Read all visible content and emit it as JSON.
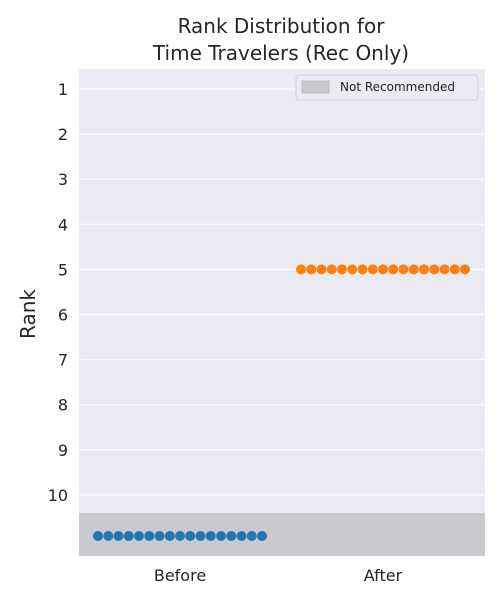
{
  "chart_data": {
    "type": "scatter",
    "title_lines": [
      "Rank Distribution for",
      "Time Travelers (Rec Only)"
    ],
    "ylabel": "Rank",
    "categories": [
      "Before",
      "After"
    ],
    "y_ticks": [
      "1",
      "2",
      "3",
      "4",
      "5",
      "6",
      "7",
      "8",
      "9",
      "10"
    ],
    "y_inverted": true,
    "grid": true,
    "legend": {
      "label": "Not Recommended",
      "placement": "top-right",
      "color": "#cbc9d0"
    },
    "series": [
      {
        "category": "Before",
        "value": "Not Recommended",
        "count": 17,
        "color": "#1f77b4"
      },
      {
        "category": "After",
        "value": 5,
        "count": 17,
        "color": "#ff7f0e"
      }
    ],
    "colors": {
      "background": "#eaeaf2",
      "grid": "#ffffff",
      "not_recommended_band": "#cbc9d0"
    }
  }
}
